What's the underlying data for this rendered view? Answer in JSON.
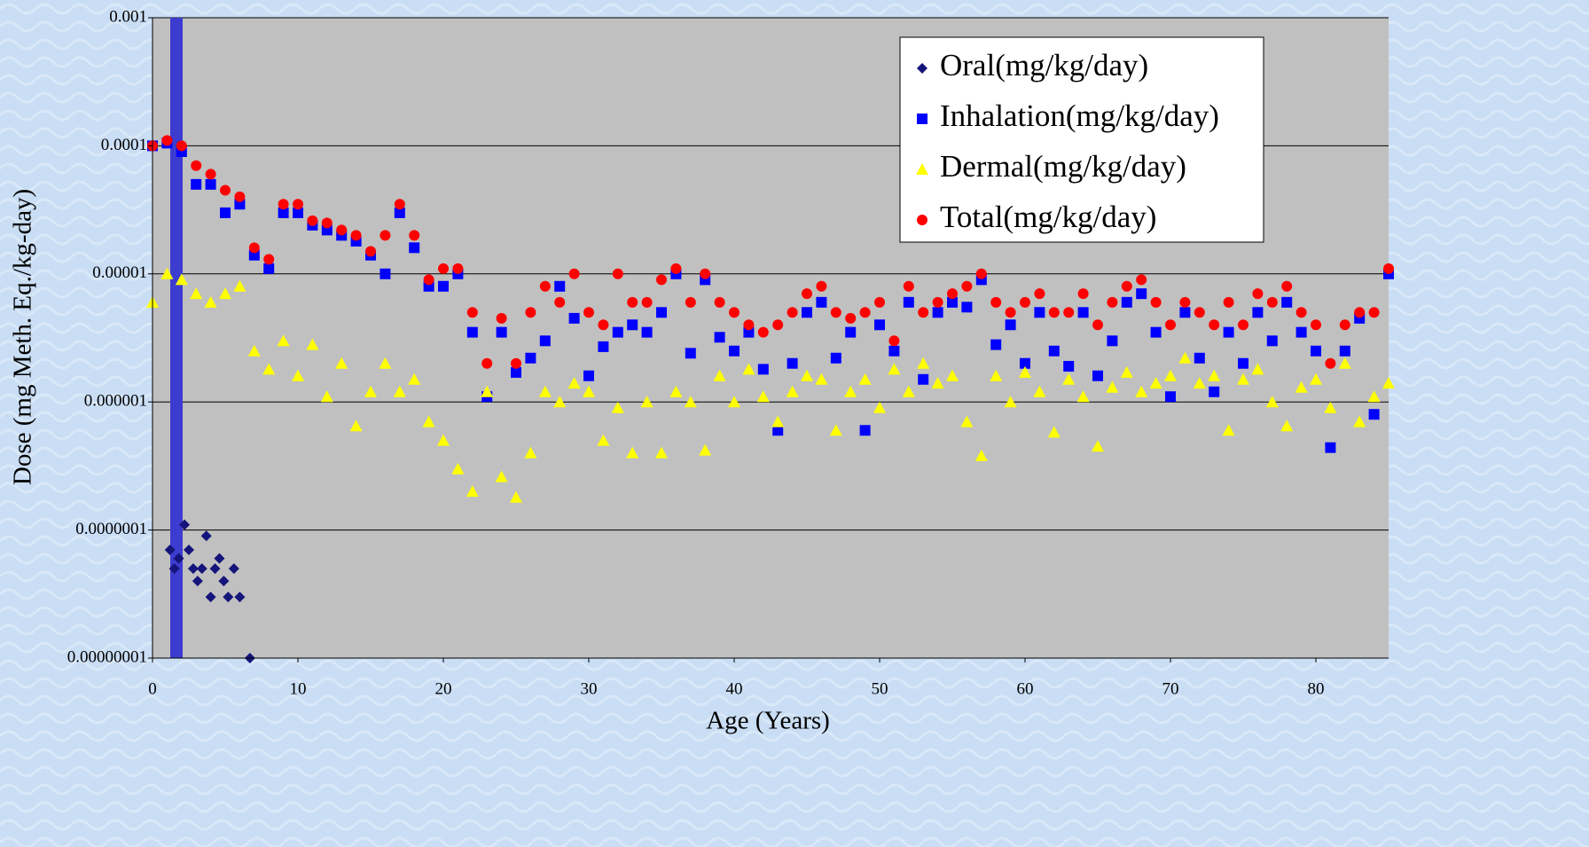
{
  "chart_data": {
    "type": "scatter",
    "x_label": "Age (Years)",
    "y_label": "Dose (mg Meth. Eq./kg-day)",
    "log_y": true,
    "grid": true,
    "legend": "top-right",
    "xlim": [
      0,
      85
    ],
    "xticks": [
      0,
      10,
      20,
      30,
      40,
      50,
      60,
      70,
      80
    ],
    "ylim": [
      1e-08,
      0.001
    ],
    "yticks": [
      {
        "value": 1e-08,
        "label": "0.00000001"
      },
      {
        "value": 1e-07,
        "label": "0.0000001"
      },
      1e-06,
      1e-05,
      0.0001,
      0.001
    ],
    "x": [
      0,
      1,
      2,
      3,
      4,
      5,
      6,
      7,
      8,
      9,
      10,
      11,
      12,
      13,
      14,
      15,
      16,
      17,
      18,
      19,
      20,
      21,
      22,
      23,
      24,
      25,
      26,
      27,
      28,
      29,
      30,
      31,
      32,
      33,
      34,
      35,
      36,
      37,
      38,
      39,
      40,
      41,
      42,
      43,
      44,
      45,
      46,
      47,
      48,
      49,
      50,
      51,
      52,
      53,
      54,
      55,
      56,
      57,
      58,
      59,
      60,
      61,
      62,
      63,
      64,
      65,
      66,
      67,
      68,
      69,
      70,
      71,
      72,
      73,
      74,
      75,
      76,
      77,
      78,
      79,
      80,
      81,
      82,
      83,
      84,
      85
    ],
    "series": [
      {
        "name": "Oral(mg/kg/day)",
        "color": "#14147a",
        "marker": "diamond",
        "x": [
          1.2,
          1.5,
          1.8,
          2.2,
          2.5,
          2.8,
          3.1,
          3.4,
          3.7,
          4,
          4.3,
          4.6,
          4.9,
          5.2,
          5.6,
          6,
          6.7
        ],
        "values": [
          7e-08,
          5e-08,
          6e-08,
          1.1e-07,
          7e-08,
          5e-08,
          4e-08,
          5e-08,
          9e-08,
          3e-08,
          5e-08,
          6e-08,
          4e-08,
          3e-08,
          5e-08,
          3e-08,
          1e-08
        ]
      },
      {
        "name": "Inhalation(mg/kg/day)",
        "color": "#0000ff",
        "marker": "square",
        "values": [
          0.0001,
          0.000105,
          9e-05,
          5e-05,
          5e-05,
          3e-05,
          3.5e-05,
          1.4e-05,
          1.1e-05,
          3e-05,
          3e-05,
          2.4e-05,
          2.2e-05,
          2e-05,
          1.8e-05,
          1.4e-05,
          1e-05,
          3e-05,
          1.6e-05,
          8e-06,
          8e-06,
          1e-05,
          3.5e-06,
          1.1e-06,
          3.5e-06,
          1.7e-06,
          2.2e-06,
          3e-06,
          8e-06,
          4.5e-06,
          1.6e-06,
          2.7e-06,
          3.5e-06,
          4e-06,
          3.5e-06,
          5e-06,
          1e-05,
          2.4e-06,
          9e-06,
          3.2e-06,
          2.5e-06,
          3.5e-06,
          1.8e-06,
          6e-07,
          2e-06,
          5e-06,
          6e-06,
          2.2e-06,
          3.5e-06,
          6e-07,
          4e-06,
          2.5e-06,
          6e-06,
          1.5e-06,
          5e-06,
          6e-06,
          5.5e-06,
          9e-06,
          2.8e-06,
          4e-06,
          2e-06,
          5e-06,
          2.5e-06,
          1.9e-06,
          5e-06,
          1.6e-06,
          3e-06,
          6e-06,
          7e-06,
          3.5e-06,
          1.1e-06,
          5e-06,
          2.2e-06,
          1.2e-06,
          3.5e-06,
          2e-06,
          5e-06,
          3e-06,
          6e-06,
          3.5e-06,
          2.5e-06,
          4.4e-07,
          2.5e-06,
          4.5e-06,
          8e-07,
          1e-05
        ]
      },
      {
        "name": "Dermal(mg/kg/day)",
        "color": "#ffff00",
        "marker": "triangle",
        "values": [
          6e-06,
          1e-05,
          9e-06,
          7e-06,
          6e-06,
          7e-06,
          8e-06,
          2.5e-06,
          1.8e-06,
          3e-06,
          1.6e-06,
          2.8e-06,
          1.1e-06,
          2e-06,
          6.5e-07,
          1.2e-06,
          2e-06,
          1.2e-06,
          1.5e-06,
          7e-07,
          5e-07,
          3e-07,
          2e-07,
          1.2e-06,
          2.6e-07,
          1.8e-07,
          4e-07,
          1.2e-06,
          1e-06,
          1.4e-06,
          1.2e-06,
          5e-07,
          9e-07,
          4e-07,
          1e-06,
          4e-07,
          1.2e-06,
          1e-06,
          4.2e-07,
          1.6e-06,
          1e-06,
          1.8e-06,
          1.1e-06,
          7e-07,
          1.2e-06,
          1.6e-06,
          1.5e-06,
          6e-07,
          1.2e-06,
          1.5e-06,
          9e-07,
          1.8e-06,
          1.2e-06,
          2e-06,
          1.4e-06,
          1.6e-06,
          7e-07,
          3.8e-07,
          1.6e-06,
          1e-06,
          1.7e-06,
          1.2e-06,
          5.8e-07,
          1.5e-06,
          1.1e-06,
          4.5e-07,
          1.3e-06,
          1.7e-06,
          1.2e-06,
          1.4e-06,
          1.6e-06,
          2.2e-06,
          1.4e-06,
          1.6e-06,
          6e-07,
          1.5e-06,
          1.8e-06,
          1e-06,
          6.5e-07,
          1.3e-06,
          1.5e-06,
          9e-07,
          2e-06,
          7e-07,
          1.1e-06,
          1.4e-06
        ]
      },
      {
        "name": "Total(mg/kg/day)",
        "color": "#ff0000",
        "marker": "circle",
        "values": [
          0.0001,
          0.00011,
          0.0001,
          7e-05,
          6e-05,
          4.5e-05,
          4e-05,
          1.6e-05,
          1.3e-05,
          3.5e-05,
          3.5e-05,
          2.6e-05,
          2.5e-05,
          2.2e-05,
          2e-05,
          1.5e-05,
          2e-05,
          3.5e-05,
          2e-05,
          9e-06,
          1.1e-05,
          1.1e-05,
          5e-06,
          2e-06,
          4.5e-06,
          2e-06,
          5e-06,
          8e-06,
          6e-06,
          1e-05,
          5e-06,
          4e-06,
          1e-05,
          6e-06,
          6e-06,
          9e-06,
          1.1e-05,
          6e-06,
          1e-05,
          6e-06,
          5e-06,
          4e-06,
          3.5e-06,
          4e-06,
          5e-06,
          7e-06,
          8e-06,
          5e-06,
          4.5e-06,
          5e-06,
          6e-06,
          3e-06,
          8e-06,
          5e-06,
          6e-06,
          7e-06,
          8e-06,
          1e-05,
          6e-06,
          5e-06,
          6e-06,
          7e-06,
          5e-06,
          5e-06,
          7e-06,
          4e-06,
          6e-06,
          8e-06,
          9e-06,
          6e-06,
          4e-06,
          6e-06,
          5e-06,
          4e-06,
          6e-06,
          4e-06,
          7e-06,
          6e-06,
          8e-06,
          5e-06,
          4e-06,
          2e-06,
          4e-06,
          5e-06,
          5e-06,
          1.1e-05
        ]
      }
    ]
  }
}
